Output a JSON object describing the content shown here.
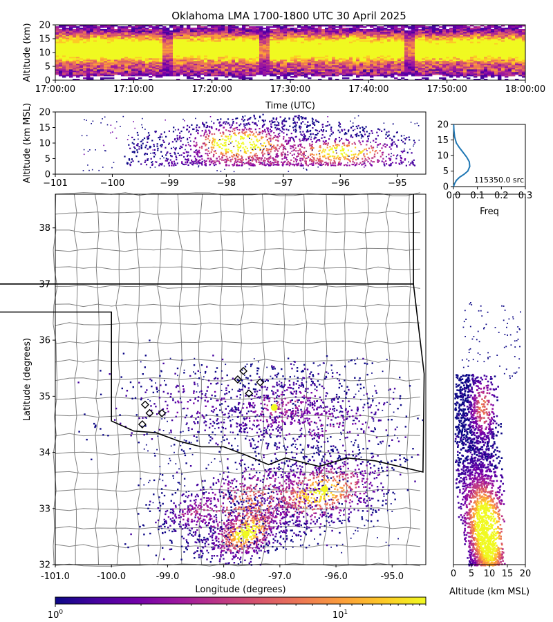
{
  "title": "Oklahoma LMA 1700-1800 UTC 30 April 2025",
  "colors": {
    "colormap": [
      "#0d0887",
      "#46039f",
      "#7201a8",
      "#9c179e",
      "#bd3786",
      "#d8576b",
      "#ed7953",
      "#fb9f3a",
      "#fdca26",
      "#f0f921"
    ],
    "state_border": "#000000",
    "county_border": "#808080",
    "freq_line": "#1f77b4",
    "station_marker": "#000000"
  },
  "chart_data": [
    {
      "id": "time-height",
      "type": "heatmap",
      "xlabel": "Time (UTC)",
      "ylabel": "Altitude (km)",
      "xlim": [
        "17:00:00",
        "18:00:00"
      ],
      "ylim": [
        0,
        20
      ],
      "xticks": [
        "17:00:00",
        "17:10:00",
        "17:20:00",
        "17:30:00",
        "17:40:00",
        "17:50:00",
        "18:00:00"
      ],
      "yticks": [
        "0",
        "5",
        "10",
        "15",
        "20"
      ],
      "description_of_density": "Dense source counts (yellow) between ~5 and ~17 km throughout the hour; sparser (purple) near 1-4 km."
    },
    {
      "id": "lon-alt",
      "type": "heatmap",
      "xlabel": "",
      "ylabel": "Altitude (km MSL)",
      "xlim": [
        -101,
        -94.5
      ],
      "ylim": [
        0,
        20
      ],
      "xticks": [
        "−101",
        "−100",
        "−99",
        "−98",
        "−97",
        "−96",
        "−95"
      ],
      "yticks": [
        "0",
        "5",
        "10",
        "15",
        "20"
      ],
      "peak_density_longitudes": [
        -97.8,
        -96.0
      ]
    },
    {
      "id": "alt-histogram",
      "type": "line",
      "xlabel": "Freq",
      "xlim": [
        0,
        0.3
      ],
      "ylim": [
        0,
        20
      ],
      "xticks": [
        "0.0",
        "0.1",
        "0.2",
        "0.3"
      ],
      "yticks": [
        "0",
        "5",
        "10",
        "15",
        "20"
      ],
      "annotation": "115350.0 src",
      "series": [
        {
          "x": [
            0.0,
            0.005,
            0.012,
            0.025,
            0.045,
            0.06,
            0.068,
            0.066,
            0.055,
            0.04,
            0.025,
            0.012,
            0.005,
            0.002,
            0.001
          ],
          "y": [
            0,
            1,
            2,
            3,
            4,
            5,
            6.5,
            8,
            9.5,
            11,
            12.5,
            14,
            16,
            18,
            20
          ]
        }
      ]
    },
    {
      "id": "plan-view",
      "type": "heatmap",
      "xlabel": "Longitude (degrees)",
      "ylabel": "Latitude (degrees)",
      "xlim": [
        -101.0,
        -94.4
      ],
      "ylim": [
        32,
        38.6
      ],
      "xticks": [
        "-101.0",
        "-100.0",
        "-99.0",
        "-98.0",
        "-97.0",
        "-96.0",
        "-95.0"
      ],
      "yticks": [
        "32",
        "33",
        "34",
        "35",
        "36",
        "37",
        "38"
      ],
      "hotspots": [
        {
          "lon": -97.6,
          "lat": 32.55
        },
        {
          "lon": -96.2,
          "lat": 33.35
        },
        {
          "lon": -97.1,
          "lat": 34.8
        }
      ],
      "stations": [
        {
          "lon": -99.45,
          "lat": 34.5
        },
        {
          "lon": -99.4,
          "lat": 34.85
        },
        {
          "lon": -99.32,
          "lat": 34.7
        },
        {
          "lon": -99.1,
          "lat": 34.7
        },
        {
          "lon": -97.75,
          "lat": 35.3
        },
        {
          "lon": -97.65,
          "lat": 35.45
        },
        {
          "lon": -97.55,
          "lat": 35.05
        },
        {
          "lon": -97.35,
          "lat": 35.25
        }
      ]
    },
    {
      "id": "alt-lat",
      "type": "heatmap",
      "xlabel": "Altitude (km MSL)",
      "xlim": [
        0,
        20
      ],
      "ylim": [
        32,
        38.6
      ],
      "xticks": [
        "0",
        "5",
        "10",
        "15",
        "20"
      ]
    },
    {
      "id": "colorbar",
      "type": "colorbar",
      "scale": "log",
      "range": [
        1,
        20
      ],
      "ticks": [
        {
          "value": 1,
          "base": "10",
          "exp": "0"
        },
        {
          "value": 10,
          "base": "10",
          "exp": "1"
        }
      ]
    }
  ]
}
